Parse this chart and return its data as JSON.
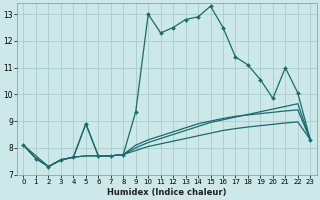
{
  "title": "",
  "xlabel": "Humidex (Indice chaleur)",
  "bg_color": "#cce8e8",
  "grid_color": "#aacccc",
  "line_color": "#1a6b6b",
  "xlim": [
    -0.5,
    23.5
  ],
  "ylim": [
    7,
    13.4
  ],
  "xticks": [
    0,
    1,
    2,
    3,
    4,
    5,
    6,
    7,
    8,
    9,
    10,
    11,
    12,
    13,
    14,
    15,
    16,
    17,
    18,
    19,
    20,
    21,
    22,
    23
  ],
  "yticks": [
    7,
    8,
    9,
    10,
    11,
    12,
    13
  ],
  "line1_x": [
    0,
    1,
    2,
    3,
    4,
    5,
    6,
    7,
    8,
    9,
    10,
    11,
    12,
    13,
    14,
    15,
    16,
    17,
    18,
    19,
    20,
    21,
    22,
    23
  ],
  "line1_y": [
    8.1,
    7.6,
    7.3,
    7.55,
    7.65,
    8.9,
    7.7,
    7.7,
    7.75,
    9.35,
    13.0,
    12.3,
    12.5,
    12.8,
    12.9,
    13.3,
    12.5,
    11.4,
    11.1,
    10.55,
    9.85,
    11.0,
    10.05,
    8.3
  ],
  "line2_x": [
    0,
    2,
    3,
    4,
    5,
    6,
    7,
    8,
    9,
    10,
    11,
    12,
    13,
    14,
    15,
    16,
    17,
    18,
    19,
    20,
    21,
    22,
    23
  ],
  "line2_y": [
    8.1,
    7.3,
    7.55,
    7.65,
    7.7,
    7.7,
    7.7,
    7.75,
    8.0,
    8.2,
    8.35,
    8.5,
    8.65,
    8.8,
    8.95,
    9.05,
    9.15,
    9.25,
    9.35,
    9.45,
    9.55,
    9.65,
    8.3
  ],
  "line3_x": [
    0,
    1,
    2,
    3,
    4,
    5,
    6,
    7,
    8,
    9,
    10,
    11,
    12,
    13,
    14,
    15,
    16,
    17,
    18,
    19,
    20,
    21,
    22,
    23
  ],
  "line3_y": [
    8.1,
    7.6,
    7.3,
    7.55,
    7.65,
    7.7,
    7.7,
    7.7,
    7.75,
    7.9,
    8.05,
    8.15,
    8.25,
    8.35,
    8.45,
    8.55,
    8.65,
    8.72,
    8.78,
    8.83,
    8.88,
    8.93,
    8.97,
    8.3
  ],
  "line4_x": [
    0,
    1,
    2,
    3,
    4,
    5,
    6,
    7,
    8,
    9,
    10,
    11,
    12,
    13,
    14,
    15,
    16,
    17,
    18,
    19,
    20,
    21,
    22,
    23
  ],
  "line4_y": [
    8.1,
    7.6,
    7.3,
    7.55,
    7.65,
    8.9,
    7.7,
    7.7,
    7.75,
    8.1,
    8.3,
    8.45,
    8.6,
    8.75,
    8.9,
    9.0,
    9.1,
    9.18,
    9.23,
    9.28,
    9.33,
    9.38,
    9.42,
    8.3
  ]
}
